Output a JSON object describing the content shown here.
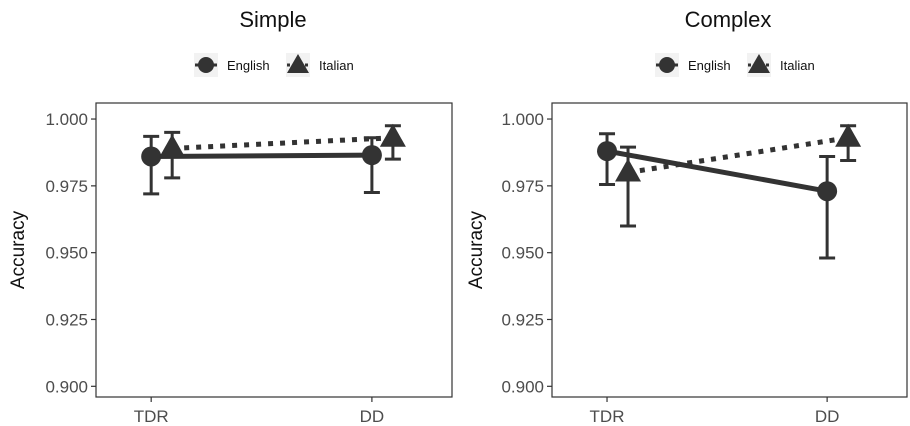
{
  "chart_data": [
    {
      "type": "line",
      "title": "Simple",
      "xlabel": "",
      "ylabel": "Accuracy",
      "categories": [
        "TDR",
        "DD"
      ],
      "yticks": [
        "0.900",
        "0.925",
        "0.950",
        "0.975",
        "1.000"
      ],
      "ylim": [
        0.896,
        1.006
      ],
      "grid": false,
      "legend_position": "top",
      "series": [
        {
          "name": "English",
          "marker": "circle",
          "line": "solid",
          "values": [
            0.986,
            0.9865
          ],
          "err_low": [
            0.972,
            0.9725
          ],
          "err_high": [
            0.9935,
            0.993
          ]
        },
        {
          "name": "Italian",
          "marker": "triangle",
          "line": "dotted",
          "values": [
            0.989,
            0.993
          ],
          "err_low": [
            0.978,
            0.985
          ],
          "err_high": [
            0.995,
            0.9975
          ]
        }
      ]
    },
    {
      "type": "line",
      "title": "Complex",
      "xlabel": "",
      "ylabel": "Accuracy",
      "categories": [
        "TDR",
        "DD"
      ],
      "yticks": [
        "0.900",
        "0.925",
        "0.950",
        "0.975",
        "1.000"
      ],
      "ylim": [
        0.896,
        1.006
      ],
      "grid": false,
      "legend_position": "top",
      "series": [
        {
          "name": "English",
          "marker": "circle",
          "line": "solid",
          "values": [
            0.988,
            0.973
          ],
          "err_low": [
            0.9755,
            0.948
          ],
          "err_high": [
            0.9945,
            0.986
          ]
        },
        {
          "name": "Italian",
          "marker": "triangle",
          "line": "dotted",
          "values": [
            0.98,
            0.993
          ],
          "err_low": [
            0.96,
            0.9845
          ],
          "err_high": [
            0.9895,
            0.9975
          ]
        }
      ]
    }
  ],
  "colors": {
    "data": "#333333",
    "axis": "#333333",
    "background": "#ffffff"
  }
}
